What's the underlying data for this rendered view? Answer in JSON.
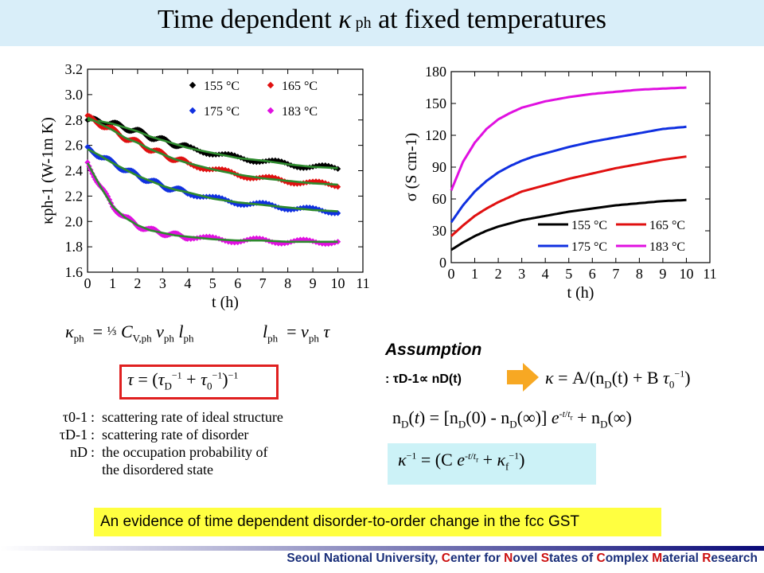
{
  "slide": {
    "title_main": "Time dependent ",
    "title_kappa": "κ",
    "title_sub": " ph",
    "title_rest": " at fixed temperatures"
  },
  "equations": {
    "kappa_ph": "κph = ⅓ CV,ph vph lph",
    "l_ph": "lph = vph τ",
    "tau": "τ = (τD−1 + τ0−1)−1",
    "kappa": "κ = A/(nD(t) + B τ0−1)",
    "n_D": "nD(t) = [nD(0) − nD(∞)] e−t/tr + nD(∞)",
    "kappa_inv": "κ−1 = (C e−t/tr + κf−1)"
  },
  "definitions": [
    {
      "symbol": "τ0-1",
      "text": "scattering rate of ideal structure"
    },
    {
      "symbol": "τD-1",
      "text": "scattering rate of disorder"
    },
    {
      "symbol": "nD",
      "text": "the occupation probability of"
    },
    {
      "symbol": "",
      "text": "the disordered state"
    }
  ],
  "assumption": {
    "heading": "Assumption",
    "colon": ": ",
    "statement": "τD-1∝ nD(t)"
  },
  "conclusion": "An evidence of time dependent disorder-to-order change in the fcc GST",
  "footer": "Seoul National University, Center for Novel States of Complex Material Research",
  "chart_data": [
    {
      "type": "scatter",
      "xlabel": "t (h)",
      "ylabel": "κph-1 (W-1m K)",
      "xlim": [
        0,
        11
      ],
      "ylim": [
        1.6,
        3.2
      ],
      "xticks": [
        0,
        1,
        2,
        3,
        4,
        5,
        6,
        7,
        8,
        9,
        10,
        11
      ],
      "yticks": [
        1.6,
        1.8,
        2.0,
        2.2,
        2.4,
        2.6,
        2.8,
        3.0,
        3.2
      ],
      "legend_position": "top-right",
      "fit_color": "#2e8b2e",
      "series": [
        {
          "name": "155 °C",
          "color": "#000000",
          "x": [
            0,
            0.5,
            1,
            1.5,
            2,
            2.5,
            3,
            3.5,
            4,
            5,
            6,
            7,
            8,
            9,
            10
          ],
          "y": [
            2.8,
            2.79,
            2.77,
            2.74,
            2.71,
            2.67,
            2.64,
            2.61,
            2.58,
            2.54,
            2.5,
            2.48,
            2.45,
            2.43,
            2.42
          ]
        },
        {
          "name": "165 °C",
          "color": "#e01010",
          "x": [
            0,
            0.5,
            1,
            1.5,
            2,
            2.5,
            3,
            3.5,
            4,
            5,
            6,
            7,
            8,
            9,
            10
          ],
          "y": [
            2.82,
            2.77,
            2.72,
            2.66,
            2.62,
            2.57,
            2.53,
            2.49,
            2.46,
            2.41,
            2.37,
            2.34,
            2.32,
            2.3,
            2.29
          ]
        },
        {
          "name": "175 °C",
          "color": "#1030e0",
          "x": [
            0,
            0.5,
            1,
            1.5,
            2,
            2.5,
            3,
            3.5,
            4,
            5,
            6,
            7,
            8,
            9,
            10
          ],
          "y": [
            2.57,
            2.52,
            2.46,
            2.41,
            2.36,
            2.32,
            2.28,
            2.25,
            2.23,
            2.18,
            2.15,
            2.13,
            2.11,
            2.09,
            2.08
          ]
        },
        {
          "name": "183 °C",
          "color": "#e010e0",
          "x": [
            0,
            0.5,
            1,
            1.5,
            2,
            2.5,
            3,
            3.5,
            4,
            5,
            6,
            7,
            8,
            9,
            10
          ],
          "y": [
            2.46,
            2.28,
            2.12,
            2.03,
            1.97,
            1.93,
            1.91,
            1.89,
            1.88,
            1.86,
            1.85,
            1.85,
            1.84,
            1.84,
            1.84
          ]
        }
      ]
    },
    {
      "type": "line",
      "xlabel": "t (h)",
      "ylabel": "σ (S cm-1)",
      "xlim": [
        0,
        11
      ],
      "ylim": [
        0,
        180
      ],
      "xticks": [
        0,
        1,
        2,
        3,
        4,
        5,
        6,
        7,
        8,
        9,
        10,
        11
      ],
      "yticks": [
        0,
        30,
        60,
        90,
        120,
        150,
        180
      ],
      "legend_position": "bottom-right",
      "series": [
        {
          "name": "155 °C",
          "color": "#000000",
          "x": [
            0,
            0.5,
            1,
            1.5,
            2,
            2.5,
            3,
            3.5,
            4,
            5,
            6,
            7,
            8,
            9,
            10
          ],
          "y": [
            12,
            19,
            25,
            30,
            34,
            37,
            40,
            42,
            44,
            48,
            51,
            54,
            56,
            58,
            59
          ]
        },
        {
          "name": "165 °C",
          "color": "#e01010",
          "x": [
            0,
            0.5,
            1,
            1.5,
            2,
            2.5,
            3,
            3.5,
            4,
            5,
            6,
            7,
            8,
            9,
            10
          ],
          "y": [
            25,
            35,
            44,
            51,
            57,
            62,
            67,
            70,
            73,
            79,
            84,
            89,
            93,
            97,
            100
          ]
        },
        {
          "name": "175 °C",
          "color": "#1030e0",
          "x": [
            0,
            0.5,
            1,
            1.5,
            2,
            2.5,
            3,
            3.5,
            4,
            5,
            6,
            7,
            8,
            9,
            10
          ],
          "y": [
            38,
            54,
            67,
            77,
            85,
            91,
            96,
            100,
            103,
            109,
            114,
            118,
            122,
            126,
            128
          ]
        },
        {
          "name": "183 °C",
          "color": "#e010e0",
          "x": [
            0,
            0.5,
            1,
            1.5,
            2,
            2.5,
            3,
            3.5,
            4,
            5,
            6,
            7,
            8,
            9,
            10
          ],
          "y": [
            68,
            95,
            113,
            126,
            135,
            141,
            146,
            149,
            152,
            156,
            159,
            161,
            163,
            164,
            165
          ]
        }
      ]
    }
  ]
}
